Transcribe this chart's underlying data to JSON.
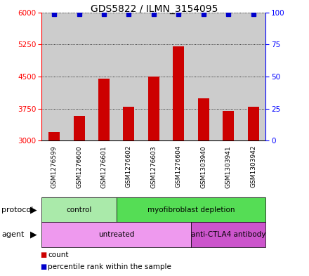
{
  "title": "GDS5822 / ILMN_3154095",
  "samples": [
    "GSM1276599",
    "GSM1276600",
    "GSM1276601",
    "GSM1276602",
    "GSM1276603",
    "GSM1276604",
    "GSM1303940",
    "GSM1303941",
    "GSM1303942"
  ],
  "counts": [
    3200,
    3580,
    4450,
    3800,
    4500,
    5200,
    4000,
    3700,
    3800
  ],
  "percentiles": [
    99,
    99,
    99,
    99,
    99,
    99,
    99,
    99,
    99
  ],
  "ylim_left": [
    3000,
    6000
  ],
  "ylim_right": [
    0,
    100
  ],
  "yticks_left": [
    3000,
    3750,
    4500,
    5250,
    6000
  ],
  "yticks_right": [
    0,
    25,
    50,
    75,
    100
  ],
  "bar_color": "#cc0000",
  "dot_color": "#0000cc",
  "protocol_groups": [
    {
      "label": "control",
      "start": 0,
      "end": 3,
      "color": "#aaeaaa"
    },
    {
      "label": "myofibroblast depletion",
      "start": 3,
      "end": 9,
      "color": "#55dd55"
    }
  ],
  "agent_groups": [
    {
      "label": "untreated",
      "start": 0,
      "end": 6,
      "color": "#ee99ee"
    },
    {
      "label": "anti-CTLA4 antibody",
      "start": 6,
      "end": 9,
      "color": "#cc55cc"
    }
  ],
  "protocol_label": "protocol",
  "agent_label": "agent",
  "legend_count_label": "count",
  "legend_pct_label": "percentile rank within the sample",
  "bg_color": "#ffffff",
  "sample_bg_color": "#cccccc",
  "grid_color": "#000000",
  "title_fontsize": 10,
  "tick_fontsize": 7.5,
  "label_fontsize": 8
}
